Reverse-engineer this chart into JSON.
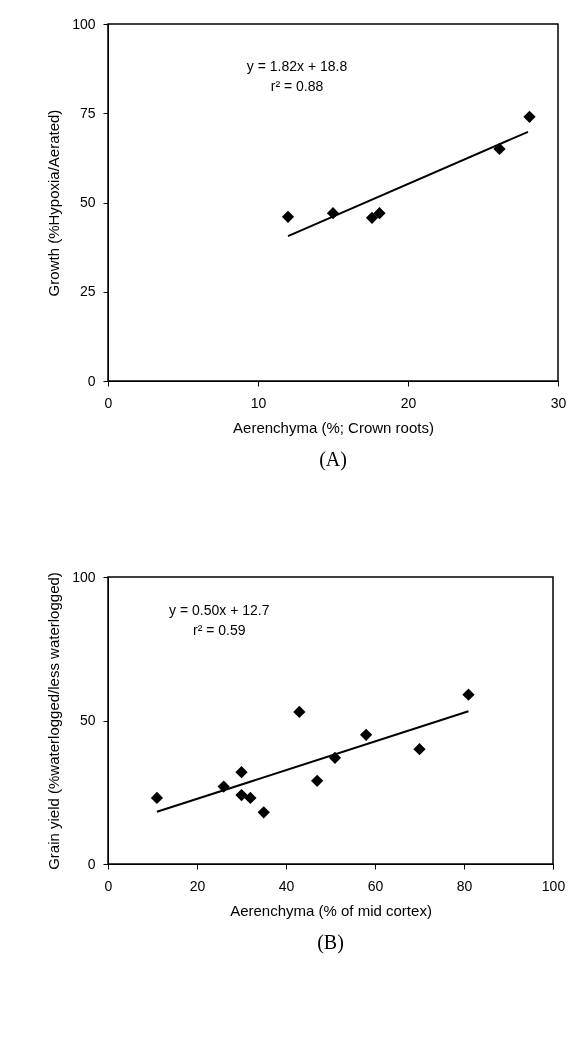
{
  "chart_data": [
    {
      "type": "scatter",
      "title": "(A)",
      "xlabel": "Aerenchyma (%; Crown roots)",
      "ylabel": "Growth (%Hypoxia/Aerated)",
      "xlim": [
        0,
        30
      ],
      "xticks": [
        0,
        10,
        20,
        30
      ],
      "ylim": [
        0,
        100
      ],
      "yticks": [
        0,
        25,
        50,
        75,
        100
      ],
      "grid": false,
      "annotations": [
        "y = 1.82x + 18.8",
        "r² = 0.88"
      ],
      "series": [
        {
          "color": "#000000",
          "marker": "diamond",
          "x": [
            12,
            15,
            17.6,
            18.1,
            26.1,
            28.1
          ],
          "values": [
            46,
            47,
            45.7,
            47,
            65,
            74
          ]
        },
        {
          "type": "line",
          "color": "#000000",
          "line_style": "solid",
          "x": [
            12,
            28
          ],
          "values": [
            40.6,
            69.8
          ]
        }
      ]
    },
    {
      "type": "scatter",
      "title": "(B)",
      "xlabel": "Aerenchyma (% of mid cortex)",
      "ylabel": "Grain yield (%waterlogged/less waterlogged)",
      "xlim": [
        0,
        100
      ],
      "xticks": [
        0,
        20,
        40,
        60,
        80,
        100
      ],
      "ylim": [
        0,
        100
      ],
      "yticks": [
        0,
        50,
        100
      ],
      "grid": false,
      "annotations": [
        "y = 0.50x + 12.7",
        "r² = 0.59"
      ],
      "series": [
        {
          "color": "#000000",
          "marker": "diamond",
          "x": [
            11,
            26,
            30,
            30,
            32,
            35,
            43,
            47,
            51,
            58,
            70,
            81
          ],
          "values": [
            23,
            27,
            32,
            24,
            23,
            18,
            53,
            29,
            37,
            45,
            40,
            59
          ]
        },
        {
          "type": "line",
          "color": "#000000",
          "line_style": "solid",
          "x": [
            11,
            81
          ],
          "values": [
            18.2,
            53.2
          ]
        }
      ]
    }
  ]
}
